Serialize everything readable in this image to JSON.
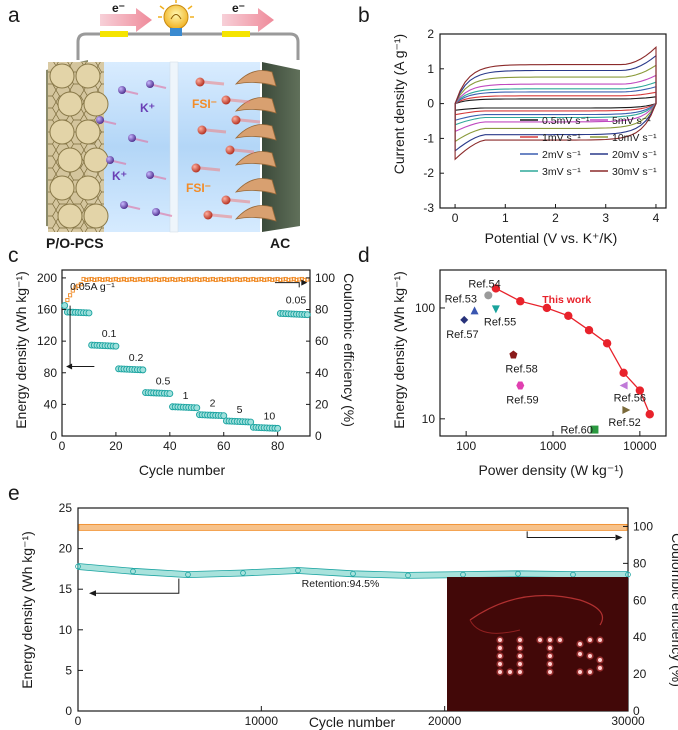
{
  "colors": {
    "orange": "#f08a24",
    "teal": "#19a3a0",
    "red": "#e8222b",
    "orange_text": "#f28c28",
    "purple": "#6a3fb5"
  },
  "panel_a": {
    "panel_label": "a",
    "electron_left": "e⁻",
    "electron_right": "e⁻",
    "ion_k_1": "K⁺",
    "ion_k_2": "K⁺",
    "ion_fsi_1": "FSI⁻",
    "ion_fsi_2": "FSI⁻",
    "electrode_left": "P/O-PCS",
    "electrode_right": "AC"
  },
  "chart_data": [
    {
      "id": "b",
      "type": "line",
      "panel_label": "b",
      "xlabel": "Potential (V vs. K⁺/K)",
      "ylabel": "Current density (A g⁻¹)",
      "xlim": [
        -0.3,
        4.2
      ],
      "ylim": [
        -3,
        2
      ],
      "xticks": [
        0,
        1,
        2,
        3,
        4
      ],
      "yticks": [
        -3,
        -2,
        -1,
        0,
        1,
        2
      ],
      "legend_position": "bottom-right",
      "series": [
        {
          "name": "0.5mV s⁻¹",
          "color": "#1a1a1a",
          "scale": 0.12
        },
        {
          "name": "1mV s⁻¹",
          "color": "#d63a3a",
          "scale": 0.2
        },
        {
          "name": "2mV s⁻¹",
          "color": "#3c5fb0",
          "scale": 0.3
        },
        {
          "name": "3mV s⁻¹",
          "color": "#2fa89a",
          "scale": 0.38
        },
        {
          "name": "5mV s⁻¹",
          "color": "#c04ac0",
          "scale": 0.5
        },
        {
          "name": "10mV s⁻¹",
          "color": "#8a9a3a",
          "scale": 0.68
        },
        {
          "name": "20mV s⁻¹",
          "color": "#2a3a8a",
          "scale": 0.85
        },
        {
          "name": "30mV s⁻¹",
          "color": "#8b2a2a",
          "scale": 1.0
        }
      ]
    },
    {
      "id": "c",
      "type": "scatter",
      "panel_label": "c",
      "xlabel": "Cycle number",
      "ylabel": "Energy density (Wh kg⁻¹)",
      "y2label": "Coulombic efficiency (%)",
      "xlim": [
        0,
        92
      ],
      "ylim": [
        0,
        210
      ],
      "y2lim": [
        0,
        105
      ],
      "xticks": [
        0,
        20,
        40,
        60,
        80
      ],
      "yticks": [
        0,
        40,
        80,
        120,
        160,
        200
      ],
      "y2ticks": [
        0,
        20,
        40,
        60,
        80,
        100
      ],
      "energy_steps": [
        {
          "x_start": 1,
          "x_end": 10,
          "value": 157,
          "label": "0.05A g⁻¹"
        },
        {
          "x_start": 11,
          "x_end": 20,
          "value": 115,
          "label": "0.1"
        },
        {
          "x_start": 21,
          "x_end": 30,
          "value": 85,
          "label": "0.2"
        },
        {
          "x_start": 31,
          "x_end": 40,
          "value": 55,
          "label": "0.5"
        },
        {
          "x_start": 41,
          "x_end": 50,
          "value": 37,
          "label": "1"
        },
        {
          "x_start": 51,
          "x_end": 60,
          "value": 27,
          "label": "2"
        },
        {
          "x_start": 61,
          "x_end": 70,
          "value": 19,
          "label": "5"
        },
        {
          "x_start": 71,
          "x_end": 80,
          "value": 11,
          "label": "10"
        },
        {
          "x_start": 81,
          "x_end": 91,
          "value": 155,
          "label": "0.05"
        }
      ],
      "coulombic_efficiency": {
        "start": [
          82,
          86,
          89,
          92,
          94,
          95,
          96
        ],
        "plateau": 99
      }
    },
    {
      "id": "d",
      "type": "scatter",
      "panel_label": "d",
      "xlabel": "Power density (W kg⁻¹)",
      "ylabel": "Energy density (Wh kg⁻¹)",
      "xscale": "log",
      "yscale": "log",
      "xlim": [
        50,
        20000
      ],
      "ylim": [
        7,
        220
      ],
      "xticks": [
        100,
        1000,
        10000
      ],
      "xticklabels": [
        "100",
        "1000",
        "10000"
      ],
      "yticks": [
        10,
        100
      ],
      "yticklabels": [
        "10",
        "100"
      ],
      "this_work": {
        "label": "This work",
        "x": [
          220,
          420,
          850,
          1500,
          2600,
          4200,
          6500,
          10000,
          13000
        ],
        "y": [
          150,
          115,
          100,
          85,
          63,
          48,
          26,
          18,
          11
        ]
      },
      "references": [
        {
          "label": "Ref.54",
          "x": 180,
          "y": 130,
          "marker": "circle",
          "color": "#9a9a9a"
        },
        {
          "label": "Ref.53",
          "x": 125,
          "y": 95,
          "marker": "triangle",
          "color": "#3a56b0"
        },
        {
          "label": "Ref.57",
          "x": 95,
          "y": 78,
          "marker": "diamond",
          "color": "#28327a"
        },
        {
          "label": "Ref.55",
          "x": 220,
          "y": 97,
          "marker": "triangle-down",
          "color": "#1aa39c"
        },
        {
          "label": "Ref.58",
          "x": 350,
          "y": 38,
          "marker": "pentagon",
          "color": "#8a1a1a"
        },
        {
          "label": "Ref.59",
          "x": 420,
          "y": 20,
          "marker": "hexagon",
          "color": "#e040b0"
        },
        {
          "label": "Ref.56",
          "x": 6500,
          "y": 20,
          "marker": "triangle-left",
          "color": "#c07ad8"
        },
        {
          "label": "Ref.52",
          "x": 7000,
          "y": 12,
          "marker": "triangle-right",
          "color": "#7a6a3a"
        },
        {
          "label": "Ref.60",
          "x": 3000,
          "y": 8,
          "marker": "square",
          "color": "#2a9a40"
        }
      ]
    },
    {
      "id": "e",
      "type": "scatter",
      "panel_label": "e",
      "xlabel": "Cycle number",
      "ylabel": "Energy density (Wh kg⁻¹)",
      "y2label": "Coulombic efficiency (%)",
      "xlim": [
        0,
        30000
      ],
      "ylim": [
        0,
        25
      ],
      "y2lim": [
        0,
        110
      ],
      "xticks": [
        0,
        10000,
        20000,
        30000
      ],
      "yticks": [
        0,
        5,
        10,
        15,
        20,
        25
      ],
      "y2ticks": [
        0,
        20,
        40,
        60,
        80,
        100
      ],
      "annotation": "Retention:94.5%",
      "energy": {
        "x": [
          0,
          3000,
          6000,
          9000,
          12000,
          15000,
          18000,
          21000,
          24000,
          27000,
          30000
        ],
        "y": [
          17.8,
          17.2,
          16.8,
          17.0,
          17.3,
          16.9,
          16.7,
          16.8,
          16.9,
          16.8,
          16.8
        ]
      },
      "coulombic_efficiency": {
        "plateau": 99.5
      }
    }
  ]
}
